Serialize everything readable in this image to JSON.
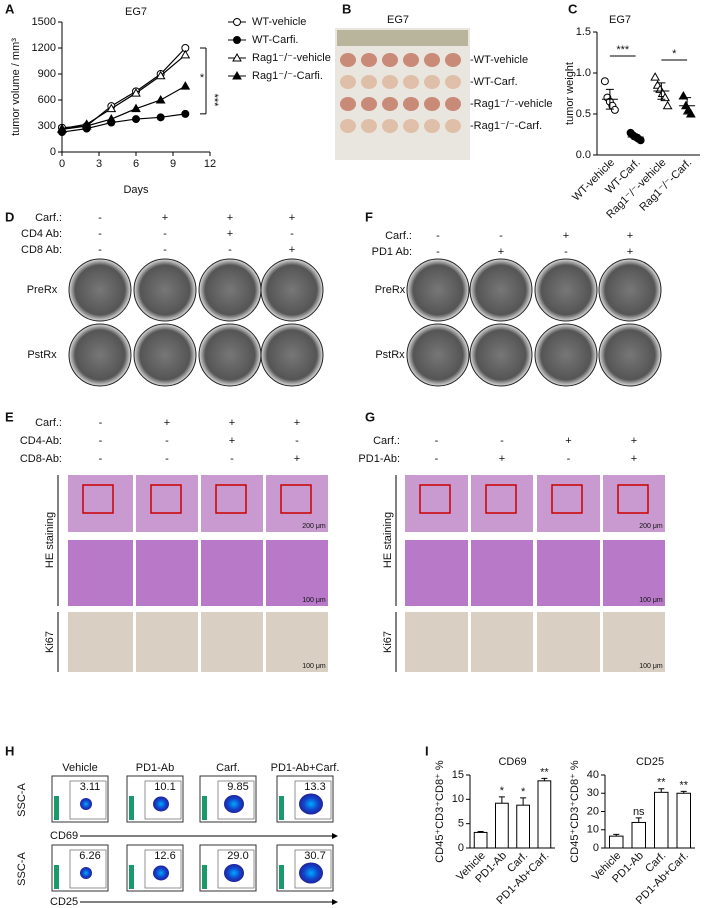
{
  "chart_data": [
    {
      "type": "line",
      "panel": "A",
      "title": "EG7",
      "x_label": "Days",
      "y_label": "tumor volume / mm³",
      "x": [
        0,
        2,
        4,
        6,
        8,
        10
      ],
      "xlim": [
        0,
        12
      ],
      "xticks": [
        0,
        3,
        6,
        9,
        12
      ],
      "ylim": [
        0,
        1500
      ],
      "yticks": [
        0,
        300,
        600,
        900,
        1200,
        1500
      ],
      "series": [
        {
          "name": "WT-vehicle",
          "color": "#000000",
          "marker": "circle",
          "filled": false,
          "values": [
            280,
            300,
            530,
            700,
            900,
            1200
          ]
        },
        {
          "name": "WT-Carfi.",
          "color": "#000000",
          "marker": "circle",
          "filled": true,
          "values": [
            230,
            270,
            340,
            380,
            400,
            440
          ]
        },
        {
          "name": "Rag1⁻/⁻-vehicle",
          "color": "#000000",
          "marker": "triangle",
          "filled": false,
          "values": [
            270,
            320,
            500,
            680,
            880,
            1120
          ]
        },
        {
          "name": "Rag1⁻/⁻-Carfi.",
          "color": "#000000",
          "marker": "triangle",
          "filled": true,
          "values": [
            260,
            300,
            380,
            500,
            600,
            760
          ]
        }
      ],
      "annotations": [
        "*",
        "***"
      ]
    },
    {
      "type": "dot",
      "panel": "C",
      "title": "EG7",
      "y_label": "tumor weight",
      "categories": [
        "WT-vehicle",
        "WT-Carf.",
        "Rag1⁻/⁻-vehicle",
        "Rag1⁻/⁻-Carf."
      ],
      "markers": [
        "circle",
        "circle",
        "triangle",
        "triangle"
      ],
      "filled": [
        false,
        true,
        false,
        true
      ],
      "values": [
        0.68,
        0.22,
        0.78,
        0.6
      ],
      "errors": [
        0.12,
        0.03,
        0.1,
        0.1
      ],
      "points": [
        [
          0.9,
          0.7,
          0.65,
          0.6,
          0.55
        ],
        [
          0.27,
          0.24,
          0.22,
          0.2,
          0.18
        ],
        [
          0.95,
          0.85,
          0.8,
          0.75,
          0.7,
          0.6
        ],
        [
          0.72,
          0.6,
          0.55,
          0.5
        ]
      ],
      "ylim": [
        0,
        1.5
      ],
      "yticks": [
        {
          "value": 0,
          "label": "0.0"
        },
        0.5,
        {
          "value": 1,
          "label": "1.0"
        },
        1.5
      ],
      "annotations": [
        "***",
        "*"
      ]
    },
    {
      "type": "bar",
      "panel": "I",
      "title": "CD69",
      "y_label": "CD45⁺CD3⁺CD8⁺ %",
      "categories": [
        "Vehicle",
        "PD1-Ab",
        "Carf.",
        "PD1-Ab+Carf."
      ],
      "values": [
        3.2,
        9.2,
        8.8,
        13.8
      ],
      "errors": [
        0.2,
        1.3,
        1.5,
        0.5
      ],
      "significance": [
        null,
        "*",
        "*",
        "**"
      ],
      "ylim": [
        0,
        15
      ],
      "yticks": [
        0,
        5,
        10,
        15
      ],
      "color": "#ffffff"
    },
    {
      "type": "bar",
      "title": "CD25",
      "y_label": "CD45⁺CD3⁺CD8⁺ %",
      "categories": [
        "Vehicle",
        "PD1-Ab",
        "Carf.",
        "PD1-Ab+Carf."
      ],
      "values": [
        6.5,
        14,
        30.5,
        30
      ],
      "errors": [
        1,
        2.5,
        2,
        1
      ],
      "significance": [
        null,
        "ns",
        "**",
        "**"
      ],
      "ylim": [
        0,
        40
      ],
      "yticks": [
        0,
        10,
        20,
        30,
        40
      ],
      "color": "#ffffff"
    }
  ],
  "panels": {
    "B": {
      "label": "B",
      "title": "EG7",
      "rows": [
        "-WT-vehicle",
        "-WT-Carf.",
        "-Rag1⁻/⁻-vehicle",
        "-Rag1⁻/⁻-Carf."
      ]
    },
    "D": {
      "label": "D",
      "conditions": [
        {
          "name": "Carf.:",
          "signs": [
            "-",
            "+",
            "+",
            "+"
          ]
        },
        {
          "name": "CD4 Ab:",
          "signs": [
            "-",
            "-",
            "+",
            "-"
          ]
        },
        {
          "name": "CD8 Ab:",
          "signs": [
            "-",
            "-",
            "-",
            "+"
          ]
        }
      ],
      "rows": [
        "PreRx",
        "PstRx"
      ]
    },
    "F": {
      "label": "F",
      "conditions": [
        {
          "name": "Carf.:",
          "signs": [
            "-",
            "-",
            "+",
            "+"
          ]
        },
        {
          "name": "PD1 Ab:",
          "signs": [
            "-",
            "+",
            "-",
            "+"
          ]
        }
      ],
      "rows": [
        "PreRx",
        "PstRx"
      ]
    },
    "E": {
      "label": "E",
      "conditions": [
        {
          "name": "Carf.:",
          "signs": [
            "-",
            "+",
            "+",
            "+"
          ]
        },
        {
          "name": "CD4-Ab:",
          "signs": [
            "-",
            "-",
            "+",
            "-"
          ]
        },
        {
          "name": "CD8-Ab:",
          "signs": [
            "-",
            "-",
            "-",
            "+"
          ]
        }
      ],
      "rows": [
        "HE staining",
        "Ki67"
      ],
      "scale_bars": [
        "200 μm",
        "100 μm",
        "100 μm"
      ]
    },
    "G": {
      "label": "G",
      "conditions": [
        {
          "name": "Carf.:",
          "signs": [
            "-",
            "-",
            "+",
            "+"
          ]
        },
        {
          "name": "PD1-Ab:",
          "signs": [
            "-",
            "+",
            "-",
            "+"
          ]
        }
      ],
      "rows": [
        "HE staining",
        "Ki67"
      ],
      "scale_bars": [
        "200 μm",
        "100 μm",
        "100 μm"
      ]
    },
    "H": {
      "label": "H",
      "columns": [
        "Vehicle",
        "PD1-Ab",
        "Carf.",
        "PD1-Ab+Carf."
      ],
      "y_label": "SSC-A",
      "rows": [
        {
          "marker": "CD69",
          "gates": [
            "3.11",
            "10.1",
            "9.85",
            "13.3"
          ]
        },
        {
          "marker": "CD25",
          "gates": [
            "6.26",
            "12.6",
            "29.0",
            "30.7"
          ]
        }
      ]
    }
  }
}
